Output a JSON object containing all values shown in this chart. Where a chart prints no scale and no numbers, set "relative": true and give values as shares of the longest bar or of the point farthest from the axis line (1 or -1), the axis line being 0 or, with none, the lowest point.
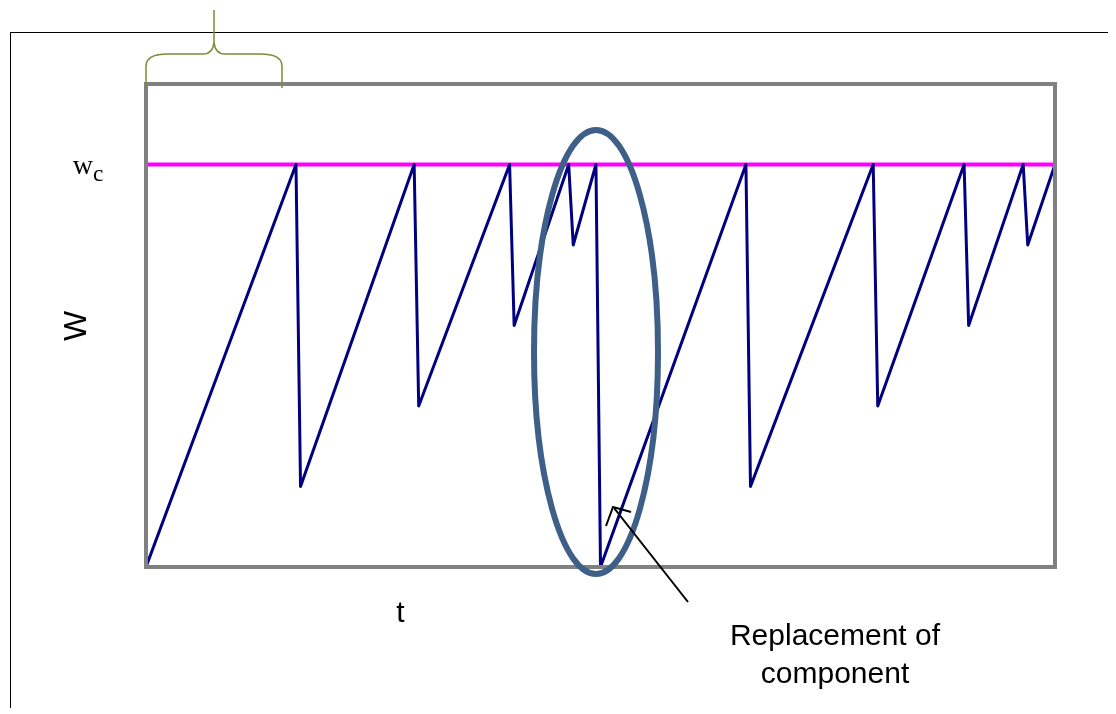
{
  "chart_data": {
    "type": "line",
    "relative": true,
    "xlabel": "t",
    "ylabel": "W",
    "grid": false,
    "legend": false,
    "marker": "none",
    "line_style": "solid",
    "categories": [
      null,
      null,
      null,
      null,
      null,
      null,
      null,
      null,
      null,
      null,
      null,
      null,
      null,
      null,
      null,
      null,
      null,
      null,
      null,
      null,
      null,
      null,
      null,
      null,
      null,
      null,
      null,
      null,
      null,
      null,
      null,
      null,
      null,
      null,
      null,
      null,
      null,
      null,
      null,
      null,
      null,
      null,
      null,
      null,
      null,
      null,
      null,
      null,
      null,
      null,
      null,
      null,
      null,
      null,
      null,
      null,
      null,
      null,
      null,
      null,
      null,
      null,
      null,
      null,
      null,
      null,
      null,
      null,
      null,
      null,
      null,
      null,
      null,
      null,
      null,
      null,
      null,
      null,
      null,
      null,
      null,
      null,
      null,
      null,
      null,
      null,
      null,
      null,
      null,
      null,
      null,
      null,
      null,
      null,
      null,
      null,
      null,
      null,
      null,
      null,
      null,
      null,
      null,
      null,
      null,
      null,
      null,
      null,
      null,
      null,
      null,
      null,
      null,
      null,
      null,
      null,
      null,
      null,
      null,
      null,
      null,
      null,
      null,
      null,
      null,
      null,
      null,
      null,
      null,
      null,
      null,
      null,
      null,
      null,
      null,
      null,
      null,
      null,
      null,
      null,
      null,
      null,
      null,
      null,
      null,
      null,
      null,
      null,
      null,
      null,
      null,
      null,
      null,
      null,
      null,
      null,
      null,
      null,
      null,
      null,
      null,
      null,
      null,
      null,
      null,
      null,
      null,
      null,
      null,
      null,
      null,
      null,
      null,
      null,
      null,
      null,
      null,
      null,
      null,
      null,
      null,
      null,
      null,
      null,
      null,
      null,
      null,
      null,
      null,
      null,
      null,
      null,
      null,
      null,
      null,
      null,
      null,
      null,
      null,
      null,
      null
    ],
    "series": [
      {
        "color": "#000080",
        "values": [
          0,
          null,
          null,
          null,
          null,
          null,
          null,
          null,
          null,
          null,
          null,
          null,
          null,
          null,
          null,
          null,
          null,
          null,
          null,
          null,
          null,
          null,
          null,
          null,
          null,
          null,
          null,
          null,
          null,
          null,
          null,
          null,
          null,
          1,
          0.2,
          null,
          null,
          null,
          null,
          null,
          null,
          null,
          null,
          null,
          null,
          null,
          null,
          null,
          null,
          null,
          null,
          null,
          null,
          null,
          null,
          null,
          null,
          null,
          null,
          1,
          0.4,
          null,
          null,
          null,
          null,
          null,
          null,
          null,
          null,
          null,
          null,
          null,
          null,
          null,
          null,
          null,
          null,
          null,
          null,
          null,
          1,
          0.6,
          null,
          null,
          null,
          null,
          null,
          null,
          null,
          null,
          null,
          null,
          null,
          1,
          0.8,
          null,
          null,
          null,
          null,
          1,
          0,
          null,
          null,
          null,
          null,
          null,
          null,
          null,
          null,
          null,
          null,
          null,
          null,
          null,
          null,
          null,
          null,
          null,
          null,
          null,
          null,
          null,
          null,
          null,
          null,
          null,
          null,
          null,
          null,
          null,
          null,
          null,
          1,
          0.2,
          null,
          null,
          null,
          null,
          null,
          null,
          null,
          null,
          null,
          null,
          null,
          null,
          null,
          null,
          null,
          null,
          null,
          null,
          null,
          null,
          null,
          null,
          null,
          null,
          null,
          null,
          1,
          0.4,
          null,
          null,
          null,
          null,
          null,
          null,
          null,
          null,
          null,
          null,
          null,
          null,
          null,
          null,
          null,
          null,
          null,
          null,
          1,
          0.6,
          null,
          null,
          null,
          null,
          null,
          null,
          null,
          null,
          null,
          null,
          null,
          1,
          0.8,
          null,
          null,
          null,
          null,
          null,
          1
        ]
      }
    ],
    "ref_lines": [
      {
        "axis": "y",
        "value": 1,
        "label": "w$_{c}$",
        "color": "#ff00ff"
      }
    ],
    "annotations": [
      "Replacement of component"
    ]
  }
}
